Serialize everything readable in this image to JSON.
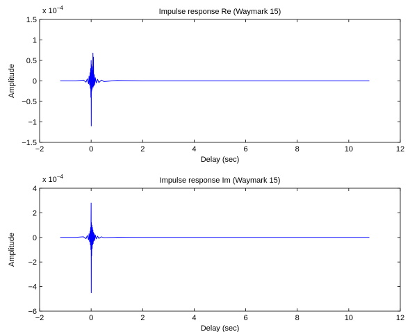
{
  "figure": {
    "background": "#ffffff",
    "line_color": "#0000ff",
    "axis_color": "#000000"
  },
  "chart_data": [
    {
      "type": "line",
      "title": "Impulse response Re (Waymark 15)",
      "xlabel": "Delay (sec)",
      "ylabel": "Amplitude",
      "xlim": [
        -2,
        12
      ],
      "ylim": [
        -1.5,
        1.5
      ],
      "xticks": [
        -2,
        0,
        2,
        4,
        6,
        8,
        10,
        12
      ],
      "xtick_labels": [
        "−2",
        "0",
        "2",
        "4",
        "6",
        "8",
        "10",
        "12"
      ],
      "yticks": [
        1.5,
        1,
        0.5,
        0,
        -0.5,
        -1,
        -1.5
      ],
      "ytick_labels": [
        "1.5",
        "1",
        "0.5",
        "0",
        "−0.5",
        "−1",
        "−1.5"
      ],
      "y_multiplier": {
        "base": "x 10",
        "exponent": "−4"
      },
      "grid": false,
      "series": [
        {
          "color": "#0000ff",
          "x": [
            -1.2,
            -0.6,
            -0.3,
            -0.2,
            -0.15,
            -0.1,
            -0.08,
            -0.06,
            -0.04,
            -0.03,
            -0.02,
            -0.01,
            0.0,
            0.005,
            0.01,
            0.02,
            0.03,
            0.04,
            0.05,
            0.06,
            0.07,
            0.08,
            0.09,
            0.1,
            0.12,
            0.14,
            0.16,
            0.2,
            0.25,
            0.3,
            0.4,
            0.5,
            1.0,
            2.0,
            4.0,
            6.0,
            8.0,
            10.0,
            10.8
          ],
          "y": [
            0.0,
            0.0,
            0.02,
            -0.03,
            0.05,
            -0.07,
            0.12,
            -0.1,
            0.2,
            -0.18,
            0.3,
            -0.4,
            0.5,
            -1.1,
            0.4,
            -0.25,
            0.35,
            -0.2,
            0.25,
            -0.15,
            0.68,
            -0.15,
            0.58,
            -0.12,
            0.15,
            -0.1,
            0.08,
            -0.05,
            0.04,
            -0.04,
            0.02,
            -0.015,
            0.01,
            0.0,
            0.0,
            0.0,
            0.0,
            0.0,
            0.0
          ]
        }
      ]
    },
    {
      "type": "line",
      "title": "Impulse response Im (Waymark 15)",
      "xlabel": "Delay (sec)",
      "ylabel": "Amplitude",
      "xlim": [
        -2,
        12
      ],
      "ylim": [
        -6,
        4
      ],
      "xticks": [
        -2,
        0,
        2,
        4,
        6,
        8,
        10,
        12
      ],
      "xtick_labels": [
        "−2",
        "0",
        "2",
        "4",
        "6",
        "8",
        "10",
        "12"
      ],
      "yticks": [
        4,
        2,
        0,
        -2,
        -4,
        -6
      ],
      "ytick_labels": [
        "4",
        "2",
        "0",
        "−2",
        "−4",
        "−6"
      ],
      "y_multiplier": {
        "base": "x 10",
        "exponent": "−4"
      },
      "grid": false,
      "series": [
        {
          "color": "#0000ff",
          "x": [
            -1.2,
            -0.6,
            -0.3,
            -0.2,
            -0.15,
            -0.1,
            -0.08,
            -0.06,
            -0.04,
            -0.03,
            -0.02,
            -0.01,
            0.0,
            0.005,
            0.01,
            0.02,
            0.03,
            0.04,
            0.05,
            0.06,
            0.07,
            0.08,
            0.09,
            0.1,
            0.12,
            0.14,
            0.16,
            0.2,
            0.25,
            0.3,
            0.4,
            0.5,
            1.0,
            2.0,
            4.0,
            6.0,
            8.0,
            10.0,
            10.8
          ],
          "y": [
            0.0,
            0.0,
            0.05,
            -0.1,
            0.15,
            -0.2,
            0.3,
            -0.35,
            0.5,
            -0.6,
            0.8,
            -1.0,
            2.8,
            -4.5,
            1.2,
            -1.5,
            1.0,
            -0.9,
            0.8,
            -0.6,
            0.6,
            -0.5,
            0.4,
            -0.3,
            0.3,
            -0.25,
            0.2,
            -0.12,
            0.1,
            -0.08,
            0.05,
            -0.03,
            0.02,
            0.0,
            0.0,
            0.0,
            0.0,
            0.0,
            0.0
          ]
        }
      ]
    }
  ]
}
